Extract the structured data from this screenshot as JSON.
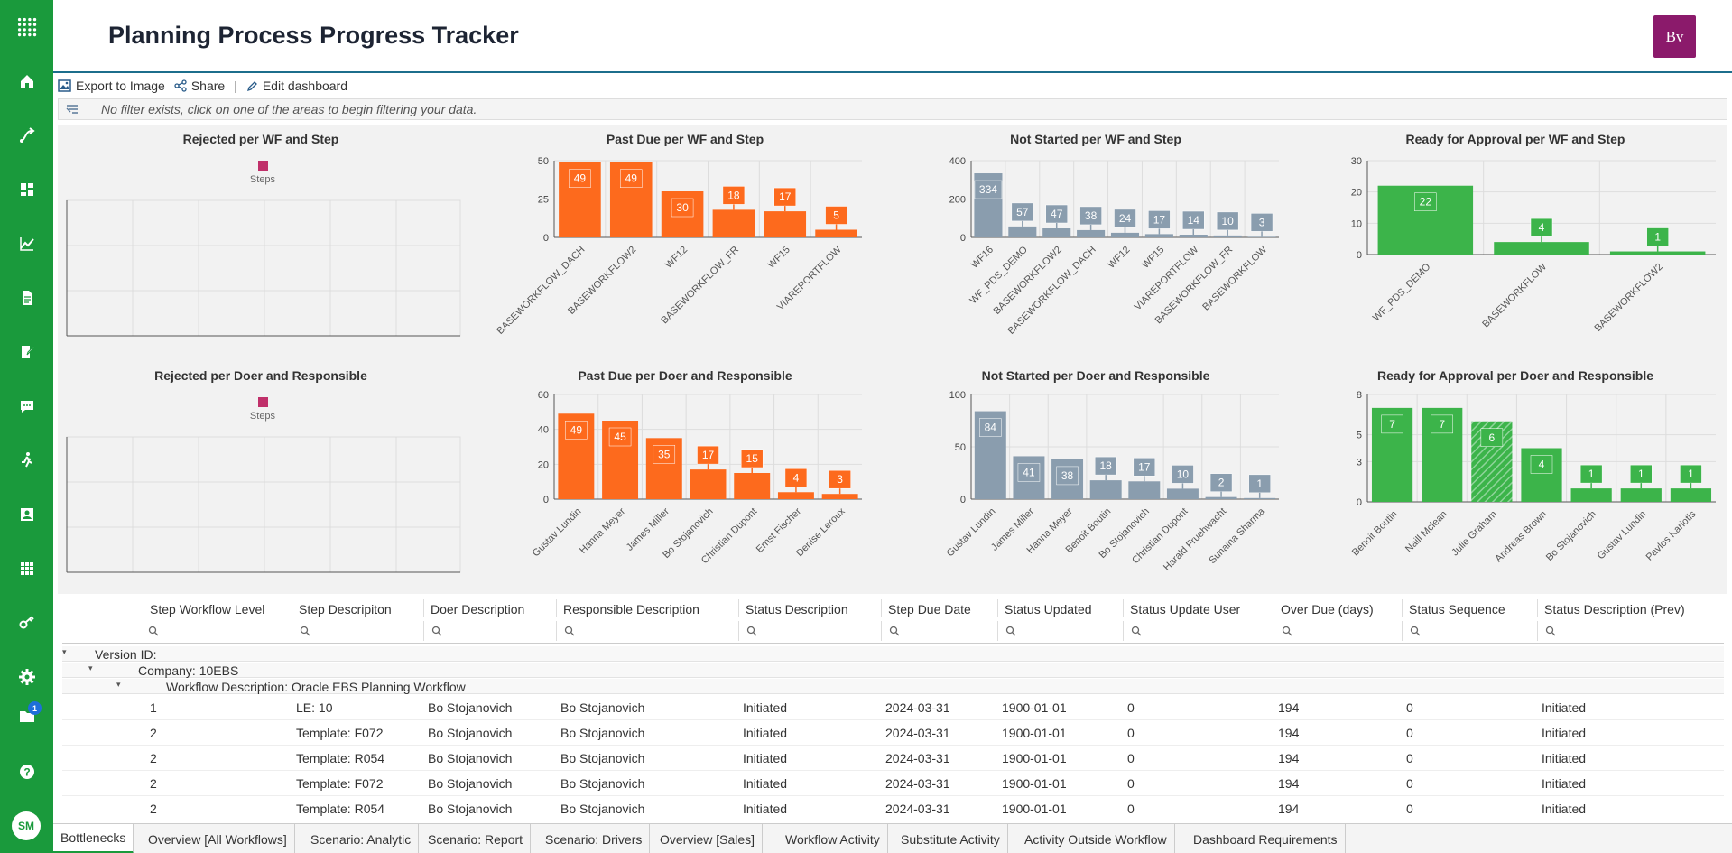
{
  "header": {
    "title": "Planning Process Progress Tracker",
    "logo_text": "Bv"
  },
  "sidebar": {
    "items": [
      "apps-grid-icon",
      "home-icon",
      "workflow-icon",
      "dashboard-icon",
      "chart-icon",
      "document-icon",
      "edit-document-icon",
      "chat-icon",
      "activity-icon",
      "profile-icon",
      "grid-icon",
      "key-icon",
      "gear-icon",
      "folder-icon",
      "help-icon"
    ],
    "badge": "1",
    "avatar": "SM"
  },
  "toolbar": {
    "export": "Export to Image",
    "share": "Share",
    "sep": "|",
    "edit": "Edit dashboard"
  },
  "filterbar": {
    "text": "No filter exists, click on one of the areas to begin filtering your data."
  },
  "colors": {
    "orange": "#fd6a1d",
    "slate": "#8a9dae",
    "green": "#3cb44a",
    "magenta": "#c0306a",
    "sidebar": "#1a9a3c"
  },
  "chart_data": [
    {
      "id": "rejected-wf",
      "title": "Rejected per WF and Step",
      "type": "bar",
      "legend": "Steps",
      "categories": [],
      "values": []
    },
    {
      "id": "pastdue-wf",
      "title": "Past Due per WF and Step",
      "type": "bar",
      "categories": [
        "BASEWORKFLOW_DACH",
        "BASEWORKFLOW2",
        "WF12",
        "BASEWORKFLOW_FR",
        "WF15",
        "VIAREPORTFLOW"
      ],
      "values": [
        49,
        49,
        30,
        18,
        17,
        5
      ],
      "yticks": [
        0,
        25,
        50
      ],
      "ylim": [
        0,
        50
      ]
    },
    {
      "id": "notstarted-wf",
      "title": "Not Started per WF and Step",
      "type": "bar",
      "categories": [
        "WF16",
        "WF_PDS_DEMO",
        "BASEWORKFLOW2",
        "BASEWORKFLOW_DACH",
        "WF12",
        "WF15",
        "VIAREPORTFLOW",
        "BASEWORKFLOW_FR",
        "BASEWORKFLOW"
      ],
      "values": [
        334,
        57,
        47,
        38,
        24,
        17,
        14,
        10,
        3
      ],
      "yticks": [
        0,
        200,
        400
      ],
      "ylim": [
        0,
        400
      ]
    },
    {
      "id": "ready-wf",
      "title": "Ready for Approval per WF and Step",
      "type": "bar",
      "categories": [
        "WF_PDS_DEMO",
        "BASEWORKFLOW",
        "BASEWORKFLOW2"
      ],
      "values": [
        22,
        4,
        1
      ],
      "yticks": [
        0,
        10,
        20,
        30
      ],
      "ylim": [
        0,
        30
      ]
    },
    {
      "id": "rejected-doer",
      "title": "Rejected per Doer and Responsible",
      "type": "bar",
      "legend": "Steps",
      "categories": [],
      "values": []
    },
    {
      "id": "pastdue-doer",
      "title": "Past Due per Doer and Responsible",
      "type": "bar",
      "categories": [
        "Gustav Lundin",
        "Hanna Meyer",
        "James Miller",
        "Bo Stojanovich",
        "Christian Dupont",
        "Ernst Fischer",
        "Denise Leroux"
      ],
      "values": [
        49,
        45,
        35,
        17,
        15,
        4,
        3
      ],
      "yticks": [
        0,
        20,
        40,
        60
      ],
      "ylim": [
        0,
        60
      ]
    },
    {
      "id": "notstarted-doer",
      "title": "Not Started per Doer and Responsible",
      "type": "bar",
      "categories": [
        "Gustav Lundin",
        "James Miller",
        "Hanna Meyer",
        "Benoit Boutin",
        "Bo Stojanovich",
        "Christian Dupont",
        "Harald Fruehwacht",
        "Sunaina Sharma"
      ],
      "values": [
        84,
        41,
        38,
        18,
        17,
        10,
        2,
        1
      ],
      "yticks": [
        0,
        50,
        100
      ],
      "ylim": [
        0,
        100
      ]
    },
    {
      "id": "ready-doer",
      "title": "Ready for Approval per Doer and Responsible",
      "type": "bar",
      "categories": [
        "Benoit Boutin",
        "Naill Mclean",
        "Julie Graham",
        "Andreas Brown",
        "Bo Stojanovich",
        "Gustav Lundin",
        "Pavlos Kariotis"
      ],
      "values": [
        7,
        7,
        6,
        4,
        1,
        1,
        1
      ],
      "yticks": [
        0,
        3,
        5,
        8
      ],
      "ylim": [
        0,
        8
      ],
      "hatched": [
        2
      ]
    }
  ],
  "grid": {
    "columns": [
      "Step Workflow Level",
      "Step Descripiton",
      "Doer Description",
      "Responsible Description",
      "Status Description",
      "Step Due Date",
      "Status Updated",
      "Status Update User",
      "Over Due (days)",
      "Status Sequence",
      "Status Description (Prev)"
    ],
    "groups": [
      "Version ID:",
      "Company: 10EBS",
      "Workflow Description: Oracle EBS Planning Workflow"
    ],
    "rows": [
      [
        "1",
        "LE: 10",
        "Bo Stojanovich",
        "Bo Stojanovich",
        "Initiated",
        "2024-03-31",
        "1900-01-01",
        "0",
        "194",
        "0",
        "Initiated"
      ],
      [
        "2",
        "Template: F072",
        "Bo Stojanovich",
        "Bo Stojanovich",
        "Initiated",
        "2024-03-31",
        "1900-01-01",
        "0",
        "194",
        "0",
        "Initiated"
      ],
      [
        "2",
        "Template: R054",
        "Bo Stojanovich",
        "Bo Stojanovich",
        "Initiated",
        "2024-03-31",
        "1900-01-01",
        "0",
        "194",
        "0",
        "Initiated"
      ],
      [
        "2",
        "Template: F072",
        "Bo Stojanovich",
        "Bo Stojanovich",
        "Initiated",
        "2024-03-31",
        "1900-01-01",
        "0",
        "194",
        "0",
        "Initiated"
      ],
      [
        "2",
        "Template: R054",
        "Bo Stojanovich",
        "Bo Stojanovich",
        "Initiated",
        "2024-03-31",
        "1900-01-01",
        "0",
        "194",
        "0",
        "Initiated"
      ]
    ]
  },
  "tabs": [
    "Bottlenecks",
    "Overview [All Workflows]",
    "Scenario: Analytic",
    "Scenario: Report",
    "Scenario: Drivers",
    "Overview [Sales]",
    "Workflow Activity",
    "Substitute Activity",
    "Activity Outside Workflow",
    "Dashboard Requirements"
  ]
}
